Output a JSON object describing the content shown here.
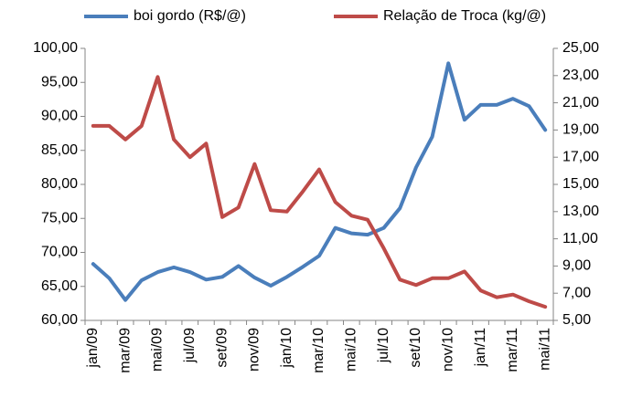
{
  "chart_data": {
    "type": "line",
    "categories": [
      "jan/09",
      null,
      "mar/09",
      null,
      "mai/09",
      null,
      "jul/09",
      null,
      "set/09",
      null,
      "nov/09",
      null,
      "jan/10",
      null,
      "mar/10",
      null,
      "mai/10",
      null,
      "jul/10",
      null,
      "set/10",
      null,
      "nov/10",
      null,
      "jan/11",
      null,
      "mar/11",
      null,
      "mai/11"
    ],
    "series": [
      {
        "name": "boi gordo (R$/@)",
        "color": "#4a7ebb",
        "values": [
          68.3,
          66.2,
          63.0,
          65.9,
          67.1,
          67.8,
          67.1,
          66.0,
          66.4,
          68.0,
          66.3,
          65.1,
          66.4,
          67.9,
          69.5,
          73.6,
          72.8,
          72.6,
          73.6,
          76.5,
          82.5,
          87.0,
          97.8,
          89.5,
          91.7,
          91.7,
          92.6,
          91.5,
          88.0
        ]
      },
      {
        "name": "Relação de Troca (kg/@)",
        "color": "#be4b48",
        "axis": "y2",
        "values": [
          19.3,
          19.3,
          18.3,
          19.3,
          22.9,
          18.3,
          17.0,
          18.0,
          12.6,
          13.3,
          16.5,
          13.1,
          13.0,
          14.5,
          16.1,
          13.7,
          12.7,
          12.4,
          10.3,
          8.0,
          7.6,
          8.1,
          8.1,
          8.6,
          7.2,
          6.7,
          6.9,
          6.4,
          6.0
        ]
      }
    ],
    "ylim": [
      60,
      100
    ],
    "yticks": [
      {
        "value": 60,
        "label": "60,00"
      },
      {
        "value": 65,
        "label": "65,00"
      },
      {
        "value": 70,
        "label": "70,00"
      },
      {
        "value": 75,
        "label": "75,00"
      },
      {
        "value": 80,
        "label": "80,00"
      },
      {
        "value": 85,
        "label": "85,00"
      },
      {
        "value": 90,
        "label": "90,00"
      },
      {
        "value": 95,
        "label": "95,00"
      },
      {
        "value": 100,
        "label": "100,00"
      }
    ],
    "y2lim": [
      5,
      25
    ],
    "y2ticks": [
      {
        "value": 5,
        "label": "5,00"
      },
      {
        "value": 7,
        "label": "7,00"
      },
      {
        "value": 9,
        "label": "9,00"
      },
      {
        "value": 11,
        "label": "11,00"
      },
      {
        "value": 13,
        "label": "13,00"
      },
      {
        "value": 15,
        "label": "15,00"
      },
      {
        "value": 17,
        "label": "17,00"
      },
      {
        "value": 19,
        "label": "19,00"
      },
      {
        "value": 21,
        "label": "21,00"
      },
      {
        "value": 23,
        "label": "23,00"
      },
      {
        "value": 25,
        "label": "25,00"
      }
    ],
    "grid": false,
    "legend": "top"
  }
}
